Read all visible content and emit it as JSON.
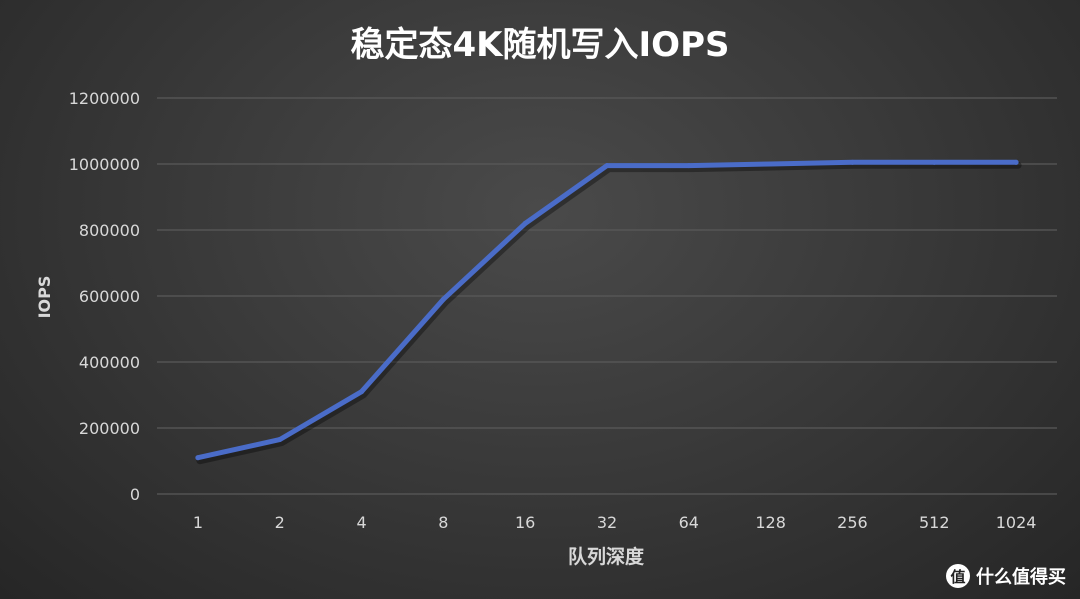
{
  "chart_data": {
    "type": "line",
    "title": "稳定态4K随机写入IOPS",
    "xlabel": "队列深度",
    "ylabel": "IOPS",
    "categories": [
      "1",
      "2",
      "4",
      "8",
      "16",
      "32",
      "64",
      "128",
      "256",
      "512",
      "1024"
    ],
    "series": [
      {
        "values": [
          110000,
          165000,
          310000,
          590000,
          820000,
          995000,
          995000,
          1000000,
          1005000,
          1005000,
          1005000
        ]
      }
    ],
    "yticks": [
      "0",
      "200000",
      "400000",
      "600000",
      "800000",
      "1000000",
      "1200000"
    ],
    "ylim": [
      0,
      1200000
    ],
    "grid": true,
    "colors": {
      "line": "#4a6cc8",
      "grid": "#5a5a5a",
      "text": "#d8d8d8",
      "title": "#ffffff"
    }
  },
  "watermark": {
    "badge": "值",
    "text": "什么值得买"
  }
}
